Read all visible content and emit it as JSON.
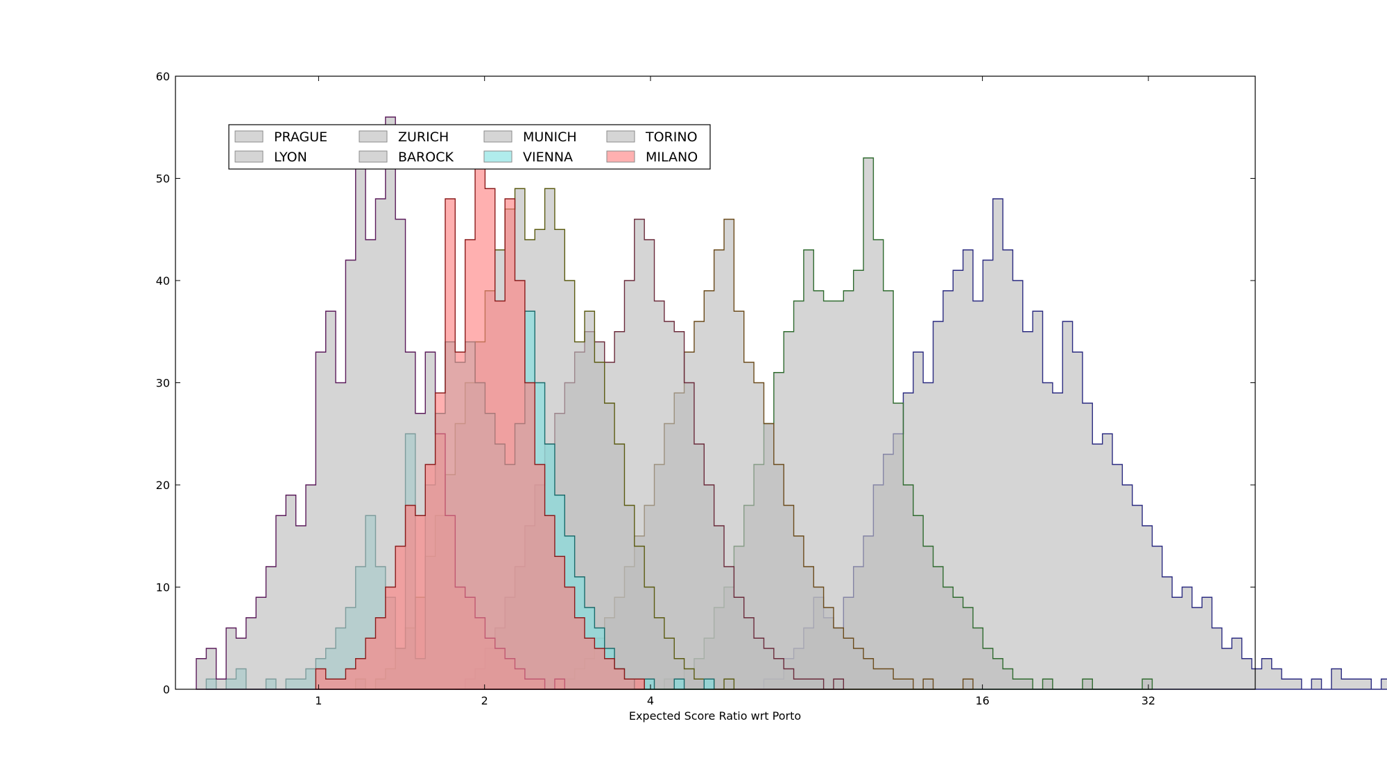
{
  "chart_data": {
    "type": "histogram",
    "title": "",
    "xlabel": "Expected Score Ratio wrt Porto",
    "ylabel": "",
    "x_scale": "log2",
    "xlim": [
      0.55,
      50
    ],
    "ylim": [
      0,
      60
    ],
    "x_ticks": [
      1,
      2,
      4,
      16,
      32
    ],
    "x_tick_labels": [
      "1",
      "2",
      "4",
      "16",
      "32"
    ],
    "y_ticks": [
      0,
      10,
      20,
      30,
      40,
      50,
      60
    ],
    "y_tick_labels": [
      "0",
      "10",
      "20",
      "30",
      "40",
      "50",
      "60"
    ],
    "bin_edges": {
      "start": 0.6,
      "step_log2": 0.06
    },
    "legend": {
      "placement": "upper-left",
      "columns": 4
    },
    "series": [
      {
        "name": "PRAGUE",
        "face_color": "#bcbcbc",
        "edge_color": "#2a2a80",
        "start_bin": 56,
        "counts": [
          0,
          1,
          1,
          3,
          4,
          6,
          9,
          7,
          6,
          9,
          12,
          15,
          20,
          23,
          25,
          29,
          33,
          30,
          36,
          39,
          41,
          43,
          38,
          42,
          48,
          43,
          40,
          35,
          37,
          30,
          29,
          36,
          33,
          28,
          24,
          25,
          22,
          20,
          18,
          16,
          14,
          11,
          9,
          10,
          8,
          9,
          6,
          4,
          5,
          3,
          2,
          3,
          2,
          1,
          1,
          0,
          1,
          0,
          2,
          1,
          1,
          1,
          0,
          1,
          0,
          0,
          0,
          0,
          0,
          1
        ]
      },
      {
        "name": "LYON",
        "face_color": "#bcbcbc",
        "edge_color": "#2e6a2e",
        "start_bin": 46,
        "counts": [
          0,
          1,
          1,
          2,
          3,
          5,
          8,
          10,
          14,
          18,
          22,
          26,
          31,
          35,
          38,
          43,
          39,
          38,
          38,
          39,
          41,
          52,
          44,
          39,
          28,
          20,
          17,
          14,
          12,
          10,
          9,
          8,
          6,
          4,
          3,
          2,
          1,
          1,
          0,
          1,
          0,
          0,
          0,
          1,
          0,
          0,
          0,
          0,
          0,
          1
        ]
      },
      {
        "name": "ZURICH",
        "face_color": "#bcbcbc",
        "edge_color": "#6a4a1a",
        "start_bin": 36,
        "counts": [
          0,
          1,
          2,
          3,
          5,
          7,
          9,
          12,
          15,
          18,
          22,
          26,
          29,
          33,
          36,
          39,
          43,
          46,
          37,
          32,
          30,
          26,
          22,
          18,
          15,
          12,
          10,
          8,
          6,
          5,
          4,
          3,
          2,
          2,
          1,
          1,
          0,
          1,
          0,
          0,
          0,
          1
        ]
      },
      {
        "name": "BAROCK",
        "face_color": "#bcbcbc",
        "edge_color": "#6a2a3a",
        "start_bin": 26,
        "counts": [
          0,
          1,
          2,
          4,
          6,
          9,
          12,
          16,
          20,
          24,
          27,
          30,
          33,
          35,
          34,
          32,
          35,
          40,
          46,
          44,
          38,
          36,
          35,
          30,
          24,
          20,
          16,
          12,
          9,
          7,
          5,
          4,
          3,
          2,
          1,
          1,
          1,
          0,
          1
        ]
      },
      {
        "name": "MUNICH",
        "face_color": "#bcbcbc",
        "edge_color": "#5a5a10",
        "start_bin": 16,
        "counts": [
          1,
          0,
          1,
          2,
          4,
          6,
          9,
          13,
          17,
          21,
          26,
          30,
          34,
          39,
          43,
          47,
          49,
          44,
          45,
          49,
          45,
          40,
          34,
          37,
          32,
          28,
          24,
          18,
          14,
          10,
          7,
          5,
          3,
          2,
          1,
          1,
          0,
          1
        ]
      },
      {
        "name": "VIENNA",
        "face_color": "#7fe0e0",
        "edge_color": "#1a6a6a",
        "start_bin": 1,
        "counts": [
          1,
          0,
          1,
          2,
          0,
          0,
          1,
          0,
          1,
          1,
          2,
          3,
          4,
          6,
          8,
          12,
          17,
          12,
          9,
          4,
          25,
          3,
          20,
          27,
          34,
          32,
          34,
          30,
          27,
          24,
          22,
          26,
          37,
          30,
          24,
          19,
          15,
          11,
          8,
          6,
          4,
          2,
          1,
          0,
          1,
          0,
          0,
          1,
          0,
          0,
          1
        ]
      },
      {
        "name": "TORINO",
        "face_color": "#bcbcbc",
        "edge_color": "#5a1a5a",
        "start_bin": 0,
        "counts": [
          3,
          4,
          1,
          6,
          5,
          7,
          9,
          12,
          17,
          19,
          16,
          20,
          33,
          37,
          30,
          42,
          51,
          44,
          48,
          56,
          46,
          33,
          27,
          33,
          25,
          17,
          10,
          9,
          7,
          5,
          4,
          3,
          2,
          1,
          1,
          0,
          1
        ]
      },
      {
        "name": "MILANO",
        "face_color": "#ff8080",
        "edge_color": "#8a1a1a",
        "start_bin": 12,
        "counts": [
          2,
          1,
          1,
          2,
          3,
          5,
          7,
          10,
          14,
          18,
          17,
          22,
          29,
          48,
          33,
          44,
          51,
          49,
          38,
          48,
          40,
          30,
          22,
          17,
          13,
          10,
          7,
          5,
          4,
          3,
          2,
          1,
          1
        ]
      }
    ]
  }
}
